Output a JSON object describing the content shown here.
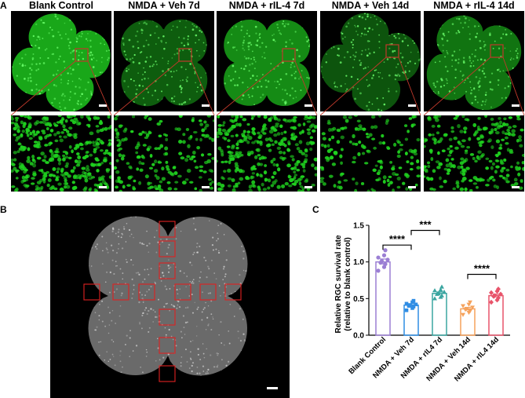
{
  "panels": {
    "a_label": "A",
    "b_label": "B",
    "c_label": "C"
  },
  "columns": [
    {
      "title": "Blank Control"
    },
    {
      "title": "NMDA + Veh 7d"
    },
    {
      "title": "NMDA + rIL-4 7d"
    },
    {
      "title": "NMDA + Veh 14d"
    },
    {
      "title": "NMDA + rIL-4 14d"
    }
  ],
  "colors": {
    "fluorescence": "#1fd11f",
    "roi_box": "#e02020",
    "zoom_line": "#c0392b"
  },
  "chart_data": {
    "type": "bar",
    "ylabel_line1": "Relative RGC survival rate",
    "ylabel_line2": "(relative to blank control)",
    "ylim": [
      0,
      1.5
    ],
    "yticks": [
      "0.0",
      "0.5",
      "1.0",
      "1.5"
    ],
    "categories": [
      "Blank Control",
      "NMDA + Veh 7d",
      "NMDA + rIL4 7d",
      "NMDA + Veh 14d",
      "NMDA + rIL4 14d"
    ],
    "values": [
      1.0,
      0.41,
      0.57,
      0.36,
      0.54
    ],
    "errors": [
      0.04,
      0.02,
      0.02,
      0.02,
      0.02
    ],
    "colors": [
      "#9b7fd4",
      "#2f8de4",
      "#3aa5a0",
      "#f5a25c",
      "#e8546a"
    ],
    "markers": [
      "circle",
      "square",
      "triangle",
      "triangle-down",
      "diamond"
    ],
    "points": [
      [
        0.88,
        0.93,
        0.97,
        0.99,
        1.01,
        1.03,
        1.06,
        1.09,
        1.16
      ],
      [
        0.34,
        0.37,
        0.39,
        0.4,
        0.41,
        0.42,
        0.43,
        0.45,
        0.47
      ],
      [
        0.5,
        0.52,
        0.54,
        0.56,
        0.57,
        0.59,
        0.61,
        0.62,
        0.66
      ],
      [
        0.28,
        0.31,
        0.33,
        0.35,
        0.36,
        0.38,
        0.4,
        0.42,
        0.45
      ],
      [
        0.45,
        0.48,
        0.51,
        0.53,
        0.54,
        0.56,
        0.58,
        0.6,
        0.63
      ]
    ],
    "significance": [
      {
        "from": 0,
        "to": 1,
        "label": "****"
      },
      {
        "from": 1,
        "to": 2,
        "label": "***"
      },
      {
        "from": 3,
        "to": 4,
        "label": "****"
      }
    ]
  }
}
